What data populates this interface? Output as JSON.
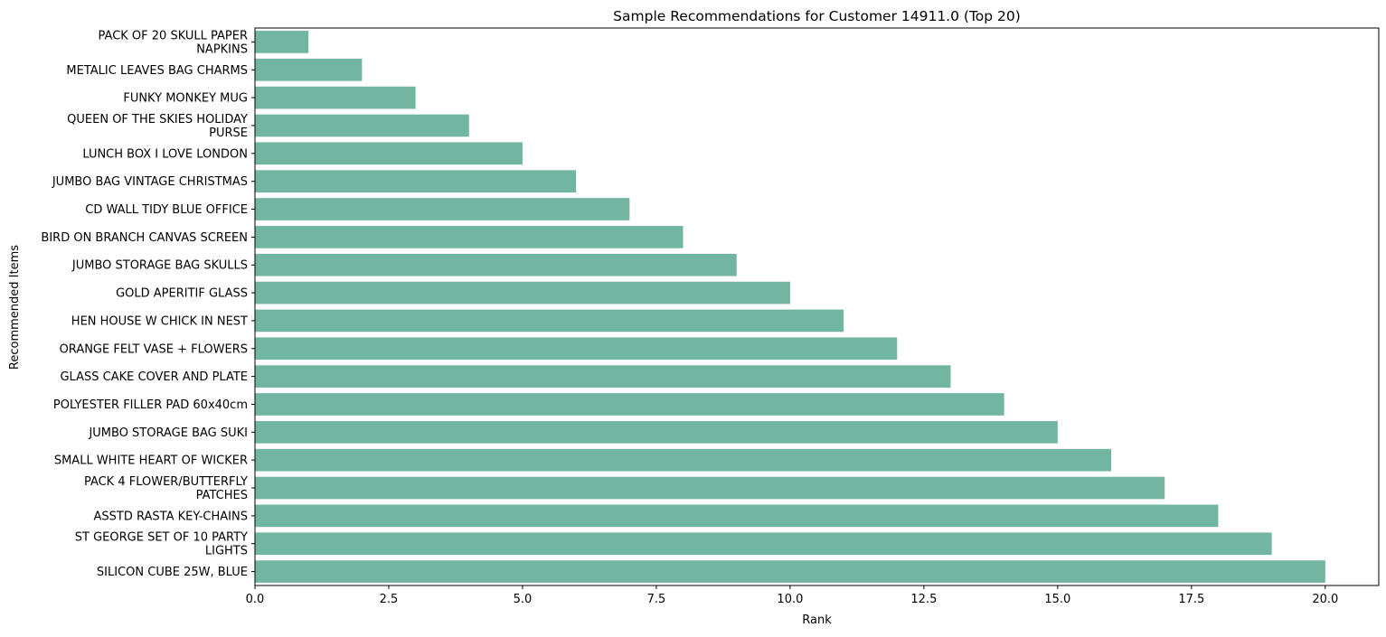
{
  "chart_data": {
    "type": "bar",
    "orientation": "horizontal",
    "title": "Sample Recommendations for Customer 14911.0 (Top 20)",
    "xlabel": "Rank",
    "ylabel": "Recommended Items",
    "xlim": [
      0,
      21
    ],
    "xticks": [
      0.0,
      2.5,
      5.0,
      7.5,
      10.0,
      12.5,
      15.0,
      17.5,
      20.0
    ],
    "xtick_labels": [
      "0.0",
      "2.5",
      "5.0",
      "7.5",
      "10.0",
      "12.5",
      "15.0",
      "17.5",
      "20.0"
    ],
    "grid": false,
    "bar_color": "#72b5a0",
    "categories": [
      [
        "PACK OF 20 SKULL PAPER",
        "NAPKINS"
      ],
      [
        "METALIC LEAVES BAG CHARMS"
      ],
      [
        "FUNKY MONKEY MUG"
      ],
      [
        "QUEEN OF THE SKIES HOLIDAY",
        "PURSE"
      ],
      [
        "LUNCH BOX I LOVE LONDON"
      ],
      [
        "JUMBO BAG VINTAGE CHRISTMAS"
      ],
      [
        "CD WALL TIDY BLUE OFFICE"
      ],
      [
        "BIRD ON BRANCH CANVAS SCREEN"
      ],
      [
        "JUMBO STORAGE BAG SKULLS"
      ],
      [
        "GOLD APERITIF GLASS"
      ],
      [
        "HEN HOUSE W CHICK IN NEST"
      ],
      [
        "ORANGE FELT VASE + FLOWERS"
      ],
      [
        "GLASS CAKE COVER AND PLATE"
      ],
      [
        "POLYESTER FILLER PAD 60x40cm"
      ],
      [
        "JUMBO STORAGE BAG SUKI"
      ],
      [
        "SMALL WHITE HEART OF WICKER"
      ],
      [
        "PACK 4 FLOWER/BUTTERFLY",
        "PATCHES"
      ],
      [
        "ASSTD RASTA KEY-CHAINS"
      ],
      [
        "ST GEORGE SET OF 10 PARTY",
        "LIGHTS"
      ],
      [
        "SILICON CUBE 25W, BLUE"
      ]
    ],
    "values": [
      1,
      2,
      3,
      4,
      5,
      6,
      7,
      8,
      9,
      10,
      11,
      12,
      13,
      14,
      15,
      16,
      17,
      18,
      19,
      20
    ]
  }
}
